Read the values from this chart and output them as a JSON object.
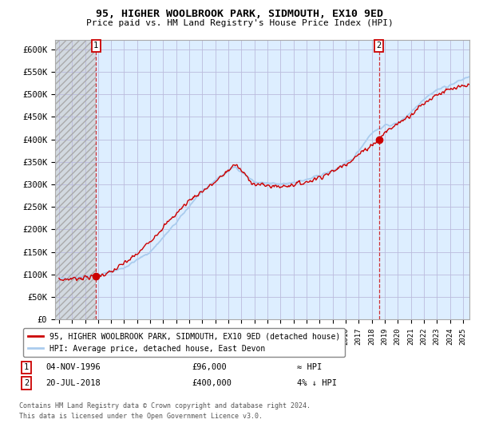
{
  "title": "95, HIGHER WOOLBROOK PARK, SIDMOUTH, EX10 9ED",
  "subtitle": "Price paid vs. HM Land Registry's House Price Index (HPI)",
  "ylim": [
    0,
    620000
  ],
  "yticks": [
    0,
    50000,
    100000,
    150000,
    200000,
    250000,
    300000,
    350000,
    400000,
    450000,
    500000,
    550000,
    600000
  ],
  "ytick_labels": [
    "£0",
    "£50K",
    "£100K",
    "£150K",
    "£200K",
    "£250K",
    "£300K",
    "£350K",
    "£400K",
    "£450K",
    "£500K",
    "£550K",
    "£600K"
  ],
  "sale1_date_num": 1996.84,
  "sale1_price": 96000,
  "sale1_label": "1",
  "sale2_date_num": 2018.55,
  "sale2_price": 400000,
  "sale2_label": "2",
  "legend_line1": "95, HIGHER WOOLBROOK PARK, SIDMOUTH, EX10 9ED (detached house)",
  "legend_line2": "HPI: Average price, detached house, East Devon",
  "footer1": "Contains HM Land Registry data © Crown copyright and database right 2024.",
  "footer2": "This data is licensed under the Open Government Licence v3.0.",
  "hpi_line_color": "#aaccee",
  "price_line_color": "#cc0000",
  "marker_color": "#cc0000",
  "bg_color": "#ffffff",
  "plot_bg_color": "#ddeeff",
  "grid_color": "#bbbbdd",
  "hatch_bg_color": "#cccccc",
  "hatch_edge_color": "#aaaaaa"
}
